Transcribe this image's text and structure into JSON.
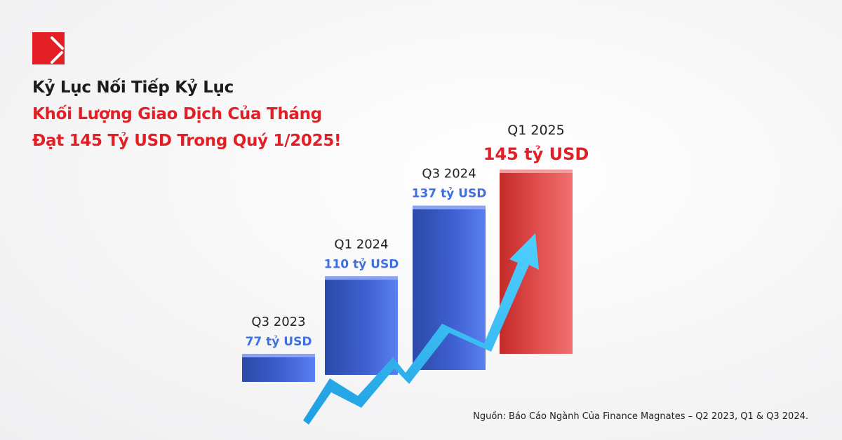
{
  "header": {
    "logo": "brand-logo",
    "line1": "Kỷ Lục Nối Tiếp Kỷ Lục",
    "line2": "Khối Lượng Giao Dịch Của Tháng",
    "line3": "Đạt 145 Tỷ USD Trong Quý 1/2025!"
  },
  "chart_data": {
    "type": "bar",
    "categories": [
      "Q3 2023",
      "Q1 2024",
      "Q3 2024",
      "Q1 2025"
    ],
    "values": [
      77,
      110,
      137,
      145
    ],
    "data_labels": [
      "77 tỷ USD",
      "110 tỷ USD",
      "137 tỷ USD",
      "145 tỷ USD"
    ],
    "unit": "tỷ USD",
    "colors": [
      "#3f5fd6",
      "#3f5fd6",
      "#3f5fd6",
      "#e84a4a"
    ],
    "label_colors": [
      "#3f6fe0",
      "#3f6fe0",
      "#3f6fe0",
      "#e31e24"
    ],
    "trend_arrow_color": "#29b6f0",
    "grid": false
  },
  "footer": {
    "source": "Nguồn: Báo Cáo Ngành Của Finance Magnates – Q2 2023, Q1 & Q3 2024."
  },
  "colors": {
    "brand": "#e31e24",
    "text": "#1c1c1c"
  }
}
